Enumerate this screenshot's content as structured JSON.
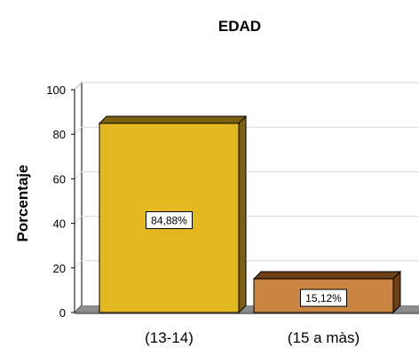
{
  "chart_data": {
    "type": "bar",
    "title": "EDAD",
    "ylabel": "Porcentaje",
    "xlabel": "",
    "categories": [
      "(13-14)",
      "(15 a màs)"
    ],
    "values": [
      84.88,
      15.12
    ],
    "data_labels": [
      "84,88%",
      "15,12%"
    ],
    "ylim": [
      0,
      100
    ],
    "yticks": [
      0,
      20,
      40,
      60,
      80,
      100
    ],
    "ytick_labels": [
      "0",
      "20",
      "40",
      "60",
      "80",
      "100"
    ],
    "grid": true,
    "bar_colors": [
      "#e3b820",
      "#cc8442"
    ],
    "bar_top_colors": [
      "#7a6010",
      "#6e3e16"
    ]
  }
}
